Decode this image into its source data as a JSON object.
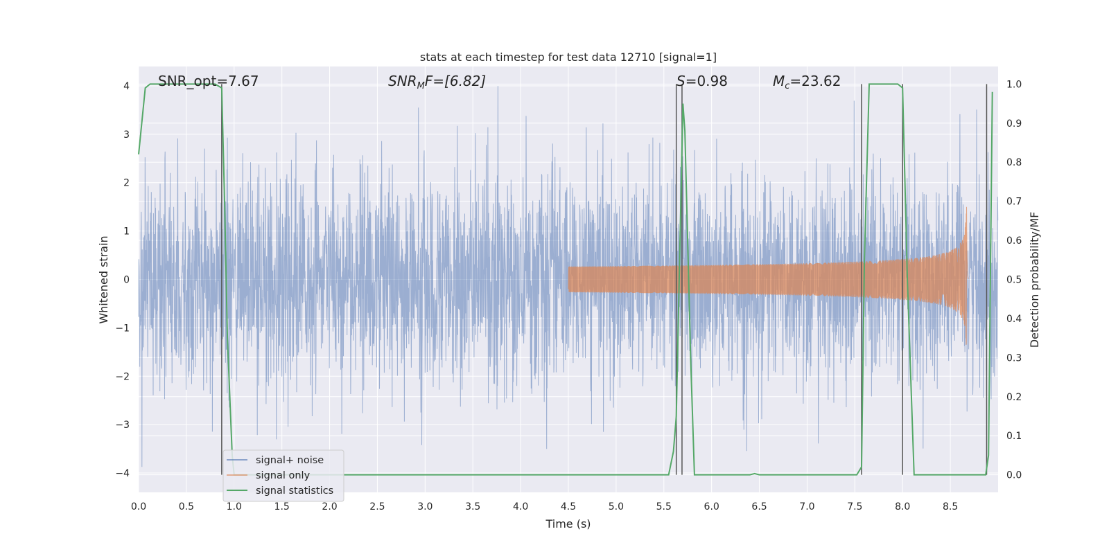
{
  "chart_data": {
    "type": "line",
    "title": "stats at each timestep for test data 12710 [signal=1]",
    "xlabel": "Time (s)",
    "ylabel": "Whitened strain",
    "y2label": "Detection probability/MF",
    "xlim": [
      0,
      9.0
    ],
    "ylim": [
      -4.4,
      4.4
    ],
    "y2lim": [
      -0.045,
      1.045
    ],
    "xticks": [
      "0.0",
      "0.5",
      "1.0",
      "1.5",
      "2.0",
      "2.5",
      "3.0",
      "3.5",
      "4.0",
      "4.5",
      "5.0",
      "5.5",
      "6.0",
      "6.5",
      "7.0",
      "7.5",
      "8.0",
      "8.5"
    ],
    "yticks": [
      "4",
      "3",
      "2",
      "1",
      "0",
      "−1",
      "−2",
      "−3",
      "−4"
    ],
    "y2ticks": [
      "1.0",
      "0.9",
      "0.8",
      "0.7",
      "0.6",
      "0.5",
      "0.4",
      "0.3",
      "0.2",
      "0.1",
      "0.0"
    ],
    "annotations": {
      "snr_opt": "SNR_opt=7.67",
      "snr_mf_name": "SNR",
      "snr_mf_sub": "M",
      "snr_mf_rest": "F=[6.82]",
      "s_name": "S",
      "s_value": "=0.98",
      "mc_name": "M",
      "mc_sub": "c",
      "mc_value": "=23.62"
    },
    "series": [
      {
        "name": "signal+ noise",
        "color": "#4c72b0",
        "description_values": "whitened noisy strain, amplitude roughly within ±4"
      },
      {
        "name": "signal only",
        "color": "#dd8452",
        "chirp_start": 4.5,
        "merger_time": 8.67,
        "peak_amplitude": 1.6
      },
      {
        "name": "signal statistics",
        "color": "#55a868",
        "x": [
          0.0,
          0.07,
          0.12,
          0.8,
          0.87,
          0.9,
          0.93,
          0.98,
          1.0,
          5.55,
          5.6,
          5.63,
          5.7,
          5.72,
          5.78,
          5.82,
          6.4,
          6.45,
          6.5,
          7.52,
          7.57,
          7.6,
          7.65,
          7.95,
          8.0,
          8.05,
          8.12,
          8.87,
          8.9,
          8.94
        ],
        "values": [
          0.82,
          0.99,
          1.0,
          1.0,
          0.99,
          0.7,
          0.35,
          0.05,
          0.0,
          0.0,
          0.06,
          0.15,
          0.95,
          0.88,
          0.3,
          0.0,
          0.0,
          0.003,
          0.0,
          0.0,
          0.02,
          0.55,
          1.0,
          1.0,
          0.99,
          0.5,
          0.0,
          0.0,
          0.05,
          0.98
        ]
      }
    ],
    "vlines": [
      0.87,
      5.63,
      5.69,
      7.57,
      8.0,
      8.88
    ],
    "vline_color": "#555555",
    "legend": "lower-left",
    "grid": true
  }
}
